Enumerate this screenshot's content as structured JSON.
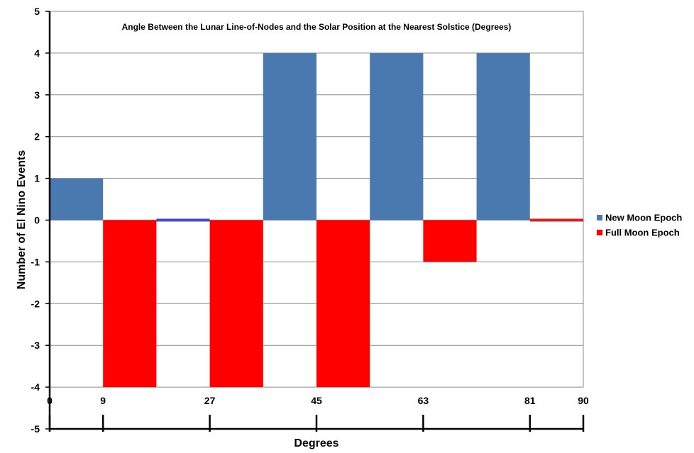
{
  "chart_data": {
    "type": "bar",
    "title": "Angle Between the Lunar Line-of-Nodes and the Solar Position  at the Nearest  Solstice (Degrees)",
    "xlabel": "Degrees",
    "ylabel": "Number of El Nino Events",
    "ylim": [
      -5,
      5
    ],
    "yticks": [
      "5",
      "4",
      "3",
      "2",
      "1",
      "0",
      "-1",
      "-2",
      "-3",
      "-4",
      "-5"
    ],
    "xlim": [
      0,
      90
    ],
    "xticks": [
      "0",
      "9",
      "27",
      "45",
      "63",
      "81",
      "90"
    ],
    "xtick_values": [
      0,
      9,
      27,
      45,
      63,
      81,
      90
    ],
    "bin_width": 9,
    "grid": true,
    "legend_position": "right",
    "series": [
      {
        "name": "New Moon Epoch",
        "color": "#4a79b0",
        "bins": [
          {
            "x0": 0,
            "x1": 9,
            "value": 1
          },
          {
            "x0": 18,
            "x1": 27,
            "value": 0
          },
          {
            "x0": 36,
            "x1": 45,
            "value": 4
          },
          {
            "x0": 54,
            "x1": 63,
            "value": 4
          },
          {
            "x0": 72,
            "x1": 81,
            "value": 4
          }
        ]
      },
      {
        "name": "Full Moon Epoch",
        "color": "#ff0000",
        "bins": [
          {
            "x0": 9,
            "x1": 18,
            "value": -4
          },
          {
            "x0": 27,
            "x1": 36,
            "value": -4
          },
          {
            "x0": 45,
            "x1": 54,
            "value": -4
          },
          {
            "x0": 63,
            "x1": 72,
            "value": -1
          },
          {
            "x0": 81,
            "x1": 90,
            "value": 0
          }
        ]
      }
    ],
    "zero_value_marker_colors": {
      "New Moon Epoch": "#4a4ad0",
      "Full Moon Epoch": "#e02020"
    }
  }
}
